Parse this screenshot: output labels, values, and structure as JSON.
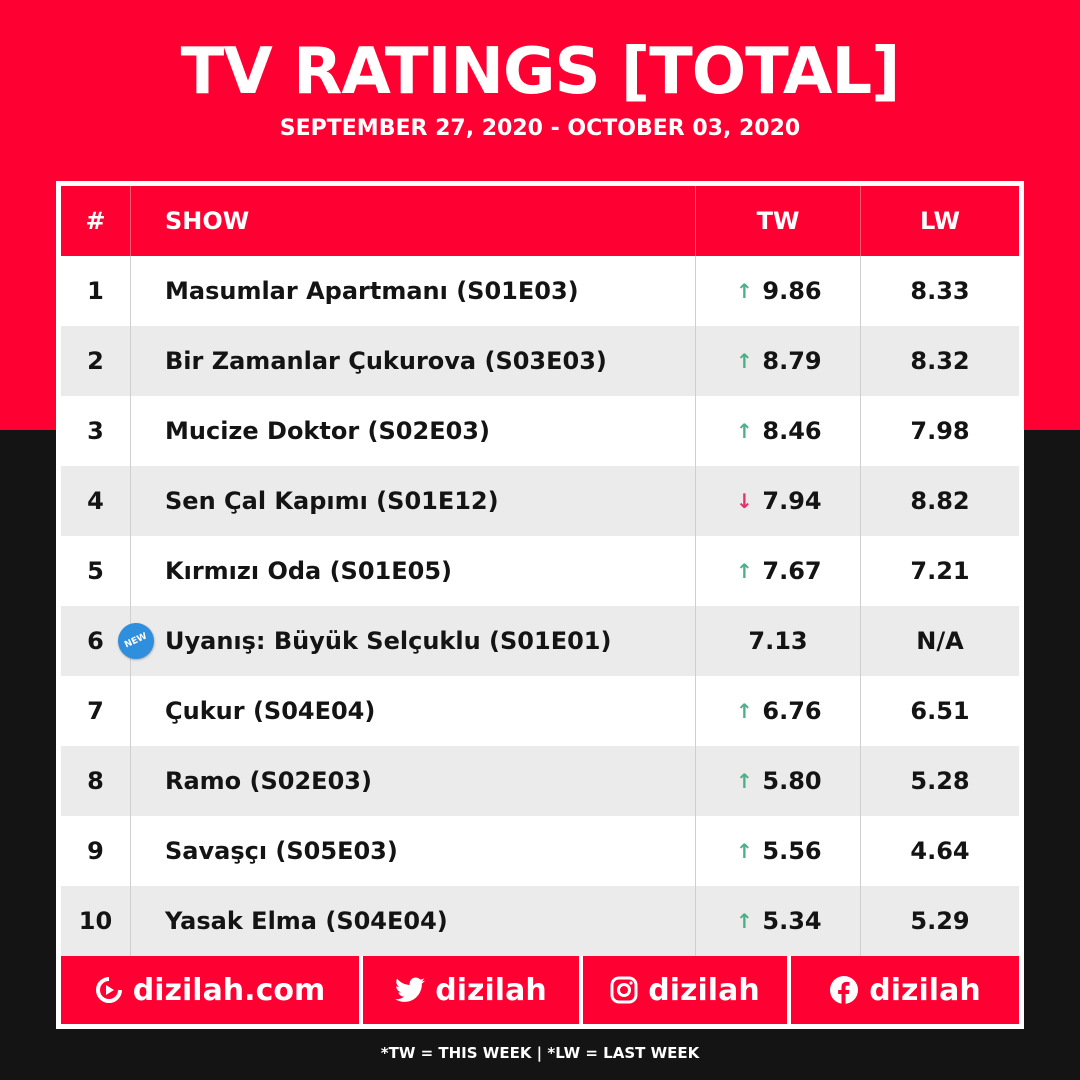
{
  "header": {
    "title": "TV RATINGS [TOTAL]",
    "subtitle": "SEPTEMBER 27, 2020 - OCTOBER 03, 2020"
  },
  "table": {
    "columns": {
      "rank": "#",
      "show": "SHOW",
      "tw": "TW",
      "lw": "LW"
    },
    "rows": [
      {
        "rank": "1",
        "show": "Masumlar Apartmanı (S01E03)",
        "tw": "9.86",
        "lw": "8.33",
        "trend": "up"
      },
      {
        "rank": "2",
        "show": "Bir Zamanlar Çukurova (S03E03)",
        "tw": "8.79",
        "lw": "8.32",
        "trend": "up"
      },
      {
        "rank": "3",
        "show": "Mucize Doktor (S02E03)",
        "tw": "8.46",
        "lw": "7.98",
        "trend": "up"
      },
      {
        "rank": "4",
        "show": "Sen Çal Kapımı (S01E12)",
        "tw": "7.94",
        "lw": "8.82",
        "trend": "down"
      },
      {
        "rank": "5",
        "show": "Kırmızı Oda (S01E05)",
        "tw": "7.67",
        "lw": "7.21",
        "trend": "up"
      },
      {
        "rank": "6",
        "show": "Uyanış: Büyük Selçuklu (S01E01)",
        "tw": "7.13",
        "lw": "N/A",
        "trend": "none",
        "badge": "NEW"
      },
      {
        "rank": "7",
        "show": "Çukur (S04E04)",
        "tw": "6.76",
        "lw": "6.51",
        "trend": "up"
      },
      {
        "rank": "8",
        "show": "Ramo (S02E03)",
        "tw": "5.80",
        "lw": "5.28",
        "trend": "up"
      },
      {
        "rank": "9",
        "show": "Savaşçı (S05E03)",
        "tw": "5.56",
        "lw": "4.64",
        "trend": "up"
      },
      {
        "rank": "10",
        "show": "Yasak Elma (S04E04)",
        "tw": "5.34",
        "lw": "5.29",
        "trend": "up"
      }
    ]
  },
  "footer": {
    "website": "dizilah.com",
    "twitter": "dizilah",
    "instagram": "dizilah",
    "facebook": "dizilah"
  },
  "note": "*TW = THIS WEEK | *LW = LAST WEEK",
  "colors": {
    "brand_red": "#ff0033",
    "dark": "#141414",
    "up": "#4caf8a",
    "down": "#e0336a"
  },
  "icons": {
    "up": "arrow-up-icon",
    "down": "arrow-down-icon"
  }
}
